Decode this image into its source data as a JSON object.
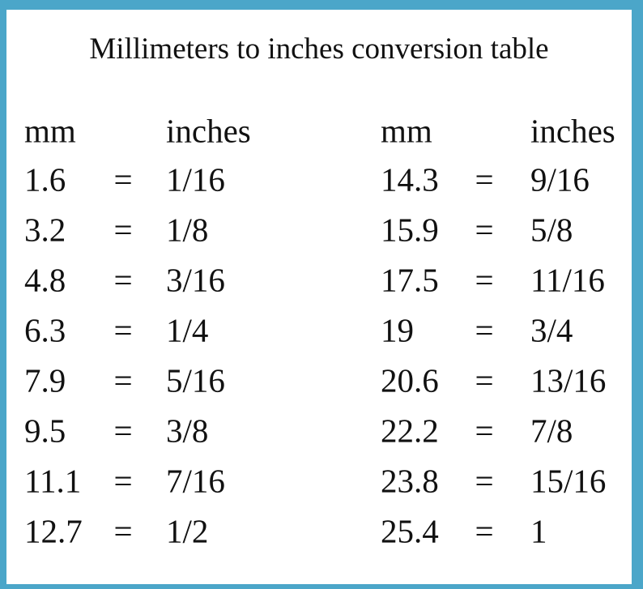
{
  "title": "Millimeters to inches conversion table",
  "tables": [
    {
      "headers": [
        "mm",
        "inches"
      ],
      "separator": "=",
      "rows": [
        [
          "1.6",
          "1/16"
        ],
        [
          "3.2",
          "1/8"
        ],
        [
          "4.8",
          "3/16"
        ],
        [
          "6.3",
          "1/4"
        ],
        [
          "7.9",
          "5/16"
        ],
        [
          "9.5",
          "3/8"
        ],
        [
          "11.1",
          "7/16"
        ],
        [
          "12.7",
          "1/2"
        ]
      ]
    },
    {
      "headers": [
        "mm",
        "inches"
      ],
      "separator": "=",
      "rows": [
        [
          "14.3",
          "9/16"
        ],
        [
          "15.9",
          "5/8"
        ],
        [
          "17.5",
          "11/16"
        ],
        [
          "19",
          "3/4"
        ],
        [
          "20.6",
          "13/16"
        ],
        [
          "22.2",
          "7/8"
        ],
        [
          "23.8",
          "15/16"
        ],
        [
          "25.4",
          "1"
        ]
      ]
    }
  ]
}
